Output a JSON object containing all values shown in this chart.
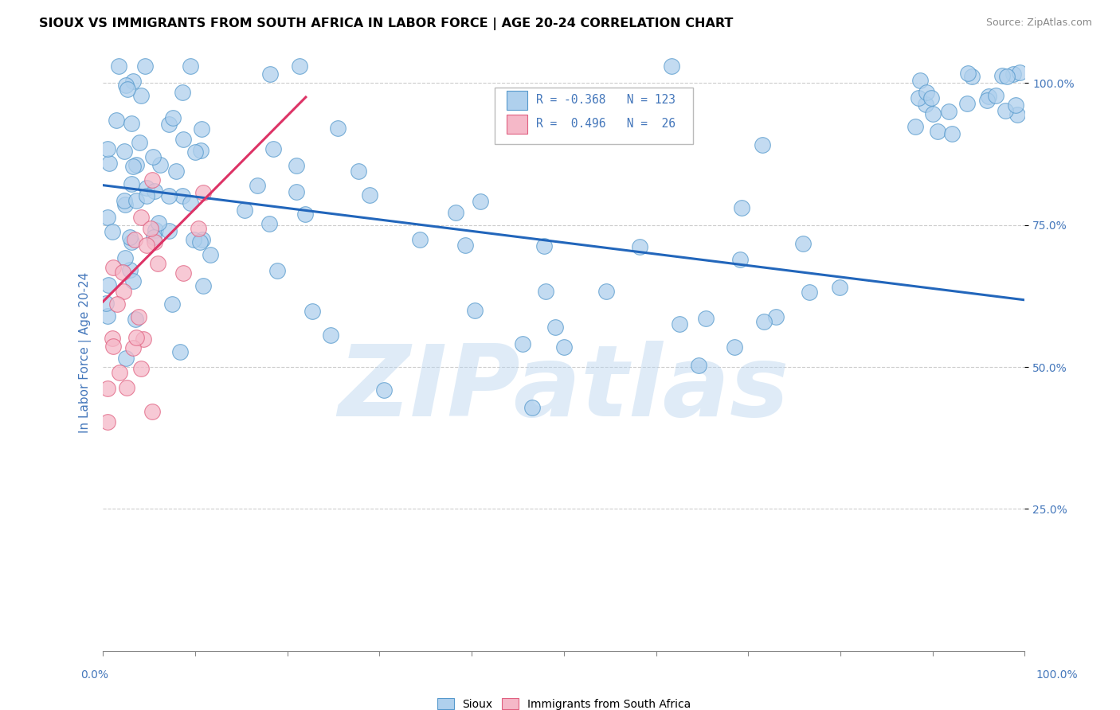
{
  "title": "SIOUX VS IMMIGRANTS FROM SOUTH AFRICA IN LABOR FORCE | AGE 20-24 CORRELATION CHART",
  "source": "Source: ZipAtlas.com",
  "ylabel": "In Labor Force | Age 20-24",
  "watermark": "ZIPatlas",
  "legend_blue_r": "-0.368",
  "legend_blue_n": "123",
  "legend_pink_r": "0.496",
  "legend_pink_n": "26",
  "blue_fill": "#afd0ed",
  "blue_edge": "#5599cc",
  "pink_fill": "#f5b8c8",
  "pink_edge": "#e06080",
  "blue_line_color": "#2266bb",
  "pink_line_color": "#dd3366",
  "background_color": "#ffffff",
  "grid_color": "#cccccc",
  "axis_color": "#4477bb",
  "blue_line_y0": 0.82,
  "blue_line_y1": 0.618,
  "pink_line_x0": 0.0,
  "pink_line_x1": 0.22,
  "pink_line_y0": 0.615,
  "pink_line_y1": 0.975,
  "xlim": [
    0.0,
    1.0
  ],
  "ylim": [
    0.0,
    1.05
  ]
}
